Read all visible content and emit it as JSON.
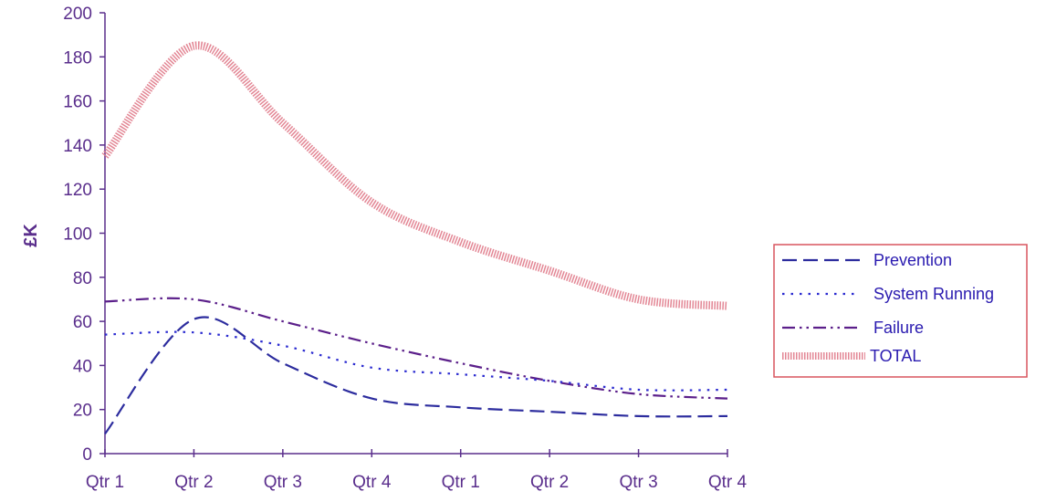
{
  "chart_data": {
    "type": "line",
    "title": "",
    "xlabel": "",
    "ylabel": "£K",
    "categories": [
      "Qtr 1",
      "Qtr 2",
      "Qtr 3",
      "Qtr 4",
      "Qtr 1",
      "Qtr 2",
      "Qtr 3",
      "Qtr 4"
    ],
    "ylim": [
      0,
      200
    ],
    "yticks": [
      0,
      20,
      40,
      60,
      80,
      100,
      120,
      140,
      160,
      180,
      200
    ],
    "grid": false,
    "legend_position": "right",
    "series": [
      {
        "name": "Prevention",
        "values": [
          9,
          61,
          41,
          25,
          21,
          19,
          17,
          17
        ],
        "color": "#2c2c9e",
        "style": "dashed"
      },
      {
        "name": "System Running",
        "values": [
          54,
          55,
          49,
          39,
          36,
          33,
          29,
          29
        ],
        "color": "#2a2ad0",
        "style": "dotted"
      },
      {
        "name": "Failure",
        "values": [
          69,
          70,
          60,
          50,
          41,
          33,
          27,
          25
        ],
        "color": "#5b1f8a",
        "style": "dashdot"
      },
      {
        "name": "TOTAL",
        "values": [
          135,
          185,
          150,
          114,
          96,
          83,
          70,
          67
        ],
        "color": "#e07a8a",
        "style": "thick"
      }
    ],
    "colors": {
      "axis": "#5a2e8c",
      "tick_text": "#5a2e8c",
      "legend_border": "#d9555f",
      "legend_text": "#2a1bb0"
    }
  }
}
